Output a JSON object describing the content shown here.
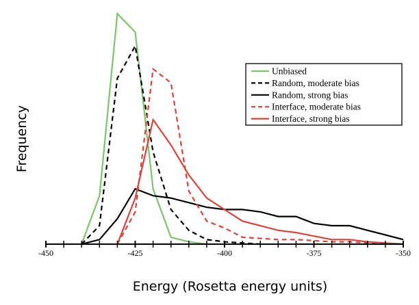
{
  "chart_data": {
    "type": "line",
    "xlabel": "Energy (Rosetta energy units)",
    "ylabel": "Frequency",
    "xlim": [
      -450,
      -350
    ],
    "x_ticks": [
      -450,
      -425,
      -400,
      -375,
      -350
    ],
    "grid": false,
    "legend_position": "top-right",
    "series": [
      {
        "name": "Unbiased",
        "color": "#7dc36b",
        "dash": "solid",
        "x": [
          -440,
          -435,
          -430,
          -425,
          -420,
          -415,
          -410,
          -405
        ],
        "y": [
          0,
          0.21,
          1.0,
          0.92,
          0.24,
          0.03,
          0.01,
          0
        ]
      },
      {
        "name": "Random, moderate bias",
        "color": "#000000",
        "dash": "dashed",
        "x": [
          -440,
          -435,
          -430,
          -425,
          -420,
          -415,
          -410,
          -405,
          -400,
          -395,
          -390
        ],
        "y": [
          0,
          0.08,
          0.72,
          0.86,
          0.4,
          0.15,
          0.06,
          0.02,
          0.01,
          0.005,
          0
        ]
      },
      {
        "name": "Random, strong bias",
        "color": "#000000",
        "dash": "solid",
        "x": [
          -440,
          -435,
          -430,
          -425,
          -420,
          -415,
          -410,
          -405,
          -400,
          -395,
          -390,
          -385,
          -380,
          -375,
          -370,
          -365,
          -360,
          -355,
          -350
        ],
        "y": [
          0,
          0.02,
          0.11,
          0.24,
          0.21,
          0.2,
          0.18,
          0.16,
          0.15,
          0.15,
          0.14,
          0.12,
          0.12,
          0.09,
          0.08,
          0.08,
          0.06,
          0.04,
          0.02
        ]
      },
      {
        "name": "Interface, moderate bias",
        "color": "#d9433b",
        "dash": "dashed",
        "x": [
          -430,
          -425,
          -420,
          -415,
          -410,
          -405,
          -400,
          -395,
          -390,
          -385,
          -380,
          -375,
          -370,
          -365,
          -360,
          -355,
          -350
        ],
        "y": [
          0,
          0.14,
          0.76,
          0.7,
          0.23,
          0.1,
          0.07,
          0.03,
          0.025,
          0.02,
          0.02,
          0.015,
          0.01,
          0.01,
          0.005,
          0.003,
          0
        ]
      },
      {
        "name": "Interface, strong bias",
        "color": "#d9433b",
        "dash": "solid",
        "x": [
          -430,
          -425,
          -420,
          -415,
          -410,
          -405,
          -400,
          -395,
          -390,
          -385,
          -380,
          -375,
          -370,
          -365,
          -360,
          -355,
          -350
        ],
        "y": [
          0,
          0.2,
          0.54,
          0.43,
          0.3,
          0.2,
          0.15,
          0.1,
          0.08,
          0.06,
          0.05,
          0.035,
          0.02,
          0.02,
          0.01,
          0.005,
          0
        ]
      }
    ]
  }
}
